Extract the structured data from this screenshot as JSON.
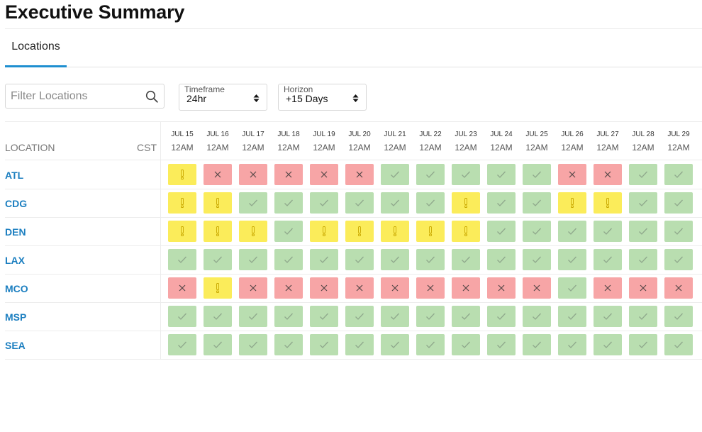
{
  "page": {
    "title": "Executive Summary"
  },
  "tabs": [
    {
      "label": "Locations",
      "active": true
    }
  ],
  "filter": {
    "placeholder": "Filter Locations",
    "value": ""
  },
  "timeframe": {
    "label": "Timeframe",
    "value": "24hr"
  },
  "horizon": {
    "label": "Horizon",
    "value": "+15 Days"
  },
  "grid": {
    "location_header": "LOCATION",
    "timezone": "CST",
    "columns": [
      {
        "date": "JUL 15",
        "time": "12AM"
      },
      {
        "date": "JUL 16",
        "time": "12AM"
      },
      {
        "date": "JUL 17",
        "time": "12AM"
      },
      {
        "date": "JUL 18",
        "time": "12AM"
      },
      {
        "date": "JUL 19",
        "time": "12AM"
      },
      {
        "date": "JUL 20",
        "time": "12AM"
      },
      {
        "date": "JUL 21",
        "time": "12AM"
      },
      {
        "date": "JUL 22",
        "time": "12AM"
      },
      {
        "date": "JUL 23",
        "time": "12AM"
      },
      {
        "date": "JUL 24",
        "time": "12AM"
      },
      {
        "date": "JUL 25",
        "time": "12AM"
      },
      {
        "date": "JUL 26",
        "time": "12AM"
      },
      {
        "date": "JUL 27",
        "time": "12AM"
      },
      {
        "date": "JUL 28",
        "time": "12AM"
      },
      {
        "date": "JUL 29",
        "time": "12AM"
      }
    ],
    "rows": [
      {
        "location": "ATL",
        "statuses": [
          "warn",
          "bad",
          "bad",
          "bad",
          "bad",
          "bad",
          "ok",
          "ok",
          "ok",
          "ok",
          "ok",
          "bad",
          "bad",
          "ok",
          "ok"
        ]
      },
      {
        "location": "CDG",
        "statuses": [
          "warn",
          "warn",
          "ok",
          "ok",
          "ok",
          "ok",
          "ok",
          "ok",
          "warn",
          "ok",
          "ok",
          "warn",
          "warn",
          "ok",
          "ok"
        ]
      },
      {
        "location": "DEN",
        "statuses": [
          "warn",
          "warn",
          "warn",
          "ok",
          "warn",
          "warn",
          "warn",
          "warn",
          "warn",
          "ok",
          "ok",
          "ok",
          "ok",
          "ok",
          "ok"
        ]
      },
      {
        "location": "LAX",
        "statuses": [
          "ok",
          "ok",
          "ok",
          "ok",
          "ok",
          "ok",
          "ok",
          "ok",
          "ok",
          "ok",
          "ok",
          "ok",
          "ok",
          "ok",
          "ok"
        ]
      },
      {
        "location": "MCO",
        "statuses": [
          "bad",
          "warn",
          "bad",
          "bad",
          "bad",
          "bad",
          "bad",
          "bad",
          "bad",
          "bad",
          "bad",
          "ok",
          "bad",
          "bad",
          "bad"
        ]
      },
      {
        "location": "MSP",
        "statuses": [
          "ok",
          "ok",
          "ok",
          "ok",
          "ok",
          "ok",
          "ok",
          "ok",
          "ok",
          "ok",
          "ok",
          "ok",
          "ok",
          "ok",
          "ok"
        ]
      },
      {
        "location": "SEA",
        "statuses": [
          "ok",
          "ok",
          "ok",
          "ok",
          "ok",
          "ok",
          "ok",
          "ok",
          "ok",
          "ok",
          "ok",
          "ok",
          "ok",
          "ok",
          "ok"
        ]
      }
    ],
    "status_icons": {
      "ok": "check-icon",
      "warn": "exclamation-icon",
      "bad": "x-icon"
    }
  },
  "colors": {
    "ok": "#b9deb0",
    "warn": "#fbec5a",
    "bad": "#f7a5a6",
    "accent": "#1e8fd0",
    "link": "#1c7fc0"
  }
}
